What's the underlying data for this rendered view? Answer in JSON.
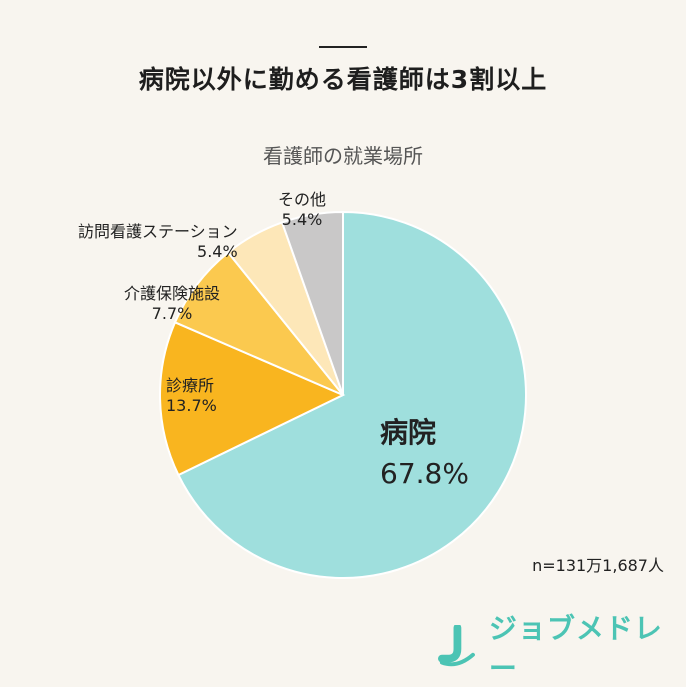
{
  "title": "病院以外に勤める看護師は3割以上",
  "chart_data": {
    "type": "pie",
    "title": "看護師の就業場所",
    "start_angle_deg": 0,
    "direction": "clockwise",
    "slices": [
      {
        "label": "病院",
        "value": 67.8,
        "display": "67.8%",
        "color": "#9fdfdd"
      },
      {
        "label": "診療所",
        "value": 13.7,
        "display": "13.7%",
        "color": "#f9b51f"
      },
      {
        "label": "介護保険施設",
        "value": 7.7,
        "display": "7.7%",
        "color": "#fbc94f"
      },
      {
        "label": "訪問看護ステーション",
        "value": 5.4,
        "display": "5.4%",
        "color": "#fde7b8"
      },
      {
        "label": "その他",
        "value": 5.4,
        "display": "5.4%",
        "color": "#c9c8c8"
      }
    ]
  },
  "note": "n=131万1,687人",
  "brand": {
    "name": "ジョブメドレー",
    "color": "#4cc4b4"
  }
}
